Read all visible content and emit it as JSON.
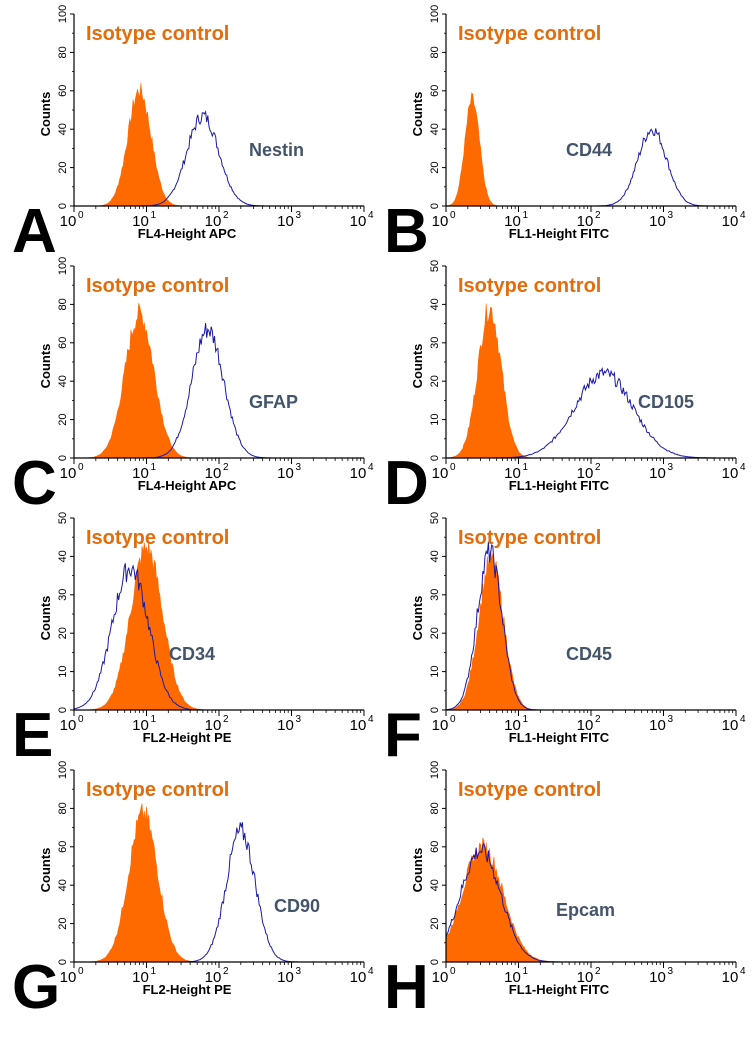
{
  "colors": {
    "isotype_fill": "#ff6a00",
    "marker_line": "#1a1aa8",
    "isotype_label": "#e46c0a",
    "marker_label": "#44546a",
    "axis": "#000000"
  },
  "chart_data": [
    {
      "panel": "A",
      "type": "area",
      "marker": "Nestin",
      "isotype_label": "Isotype control",
      "xlabel": "FL4-Height APC",
      "ylabel": "Counts",
      "xscale": "log",
      "xlim": [
        1,
        10000
      ],
      "ylim": [
        0,
        100
      ],
      "yticks": [
        "0",
        "20",
        "40",
        "60",
        "80",
        "100"
      ],
      "xticks": [
        "10",
        "10",
        "10",
        "10",
        "10"
      ],
      "xtick_exps": [
        "0",
        "1",
        "2",
        "3",
        "4"
      ],
      "series": [
        {
          "name": "Isotype control",
          "style": "filled",
          "peak_x": 8,
          "peak_y": 60,
          "width_decades": 0.16
        },
        {
          "name": "Nestin",
          "style": "line",
          "peak_x": 60,
          "peak_y": 47,
          "width_decades": 0.22
        }
      ]
    },
    {
      "panel": "B",
      "type": "area",
      "marker": "CD44",
      "isotype_label": "Isotype control",
      "xlabel": "FL1-Height FITC",
      "ylabel": "Counts",
      "xscale": "log",
      "xlim": [
        1,
        10000
      ],
      "ylim": [
        0,
        100
      ],
      "yticks": [
        "0",
        "20",
        "40",
        "60",
        "80",
        "100"
      ],
      "xticks": [
        "10",
        "10",
        "10",
        "10",
        "10"
      ],
      "xtick_exps": [
        "0",
        "1",
        "2",
        "3",
        "4"
      ],
      "series": [
        {
          "name": "Isotype control",
          "style": "filled",
          "peak_x": 2.3,
          "peak_y": 55,
          "width_decades": 0.1
        },
        {
          "name": "CD44",
          "style": "line",
          "peak_x": 700,
          "peak_y": 40,
          "width_decades": 0.2
        }
      ]
    },
    {
      "panel": "C",
      "type": "area",
      "marker": "GFAP",
      "isotype_label": "Isotype control",
      "xlabel": "FL4-Height APC",
      "ylabel": "Counts",
      "xscale": "log",
      "xlim": [
        1,
        10000
      ],
      "ylim": [
        0,
        100
      ],
      "yticks": [
        "0",
        "20",
        "40",
        "60",
        "80",
        "100"
      ],
      "xticks": [
        "10",
        "10",
        "10",
        "10",
        "10"
      ],
      "xtick_exps": [
        "0",
        "1",
        "2",
        "3",
        "4"
      ],
      "series": [
        {
          "name": "Isotype control",
          "style": "filled",
          "peak_x": 8,
          "peak_y": 75,
          "width_decades": 0.2
        },
        {
          "name": "GFAP",
          "style": "line",
          "peak_x": 70,
          "peak_y": 67,
          "width_decades": 0.22
        }
      ]
    },
    {
      "panel": "D",
      "type": "area",
      "marker": "CD105",
      "isotype_label": "Isotype control",
      "xlabel": "FL1-Height FITC",
      "ylabel": "Counts",
      "xscale": "log",
      "xlim": [
        1,
        10000
      ],
      "ylim": [
        0,
        50
      ],
      "yticks": [
        "0",
        "10",
        "20",
        "30",
        "40",
        "50"
      ],
      "xticks": [
        "10",
        "10",
        "10",
        "10",
        "10"
      ],
      "xtick_exps": [
        "0",
        "1",
        "2",
        "3",
        "4"
      ],
      "series": [
        {
          "name": "Isotype control",
          "style": "filled",
          "peak_x": 4,
          "peak_y": 39,
          "width_decades": 0.16
        },
        {
          "name": "CD105",
          "style": "line",
          "peak_x": 150,
          "peak_y": 22,
          "width_decades": 0.4
        }
      ]
    },
    {
      "panel": "E",
      "type": "area",
      "marker": "CD34",
      "isotype_label": "Isotype control",
      "xlabel": "FL2-Height PE",
      "ylabel": "Counts",
      "xscale": "log",
      "xlim": [
        1,
        10000
      ],
      "ylim": [
        0,
        50
      ],
      "yticks": [
        "0",
        "10",
        "20",
        "30",
        "40",
        "50"
      ],
      "xticks": [
        "10",
        "10",
        "10",
        "10",
        "10"
      ],
      "xtick_exps": [
        "0",
        "1",
        "2",
        "3",
        "4"
      ],
      "series": [
        {
          "name": "Isotype control",
          "style": "filled",
          "peak_x": 10,
          "peak_y": 42,
          "width_decades": 0.22
        },
        {
          "name": "CD34",
          "style": "line",
          "peak_x": 6,
          "peak_y": 37,
          "width_decades": 0.25
        }
      ]
    },
    {
      "panel": "F",
      "type": "area",
      "marker": "CD45",
      "isotype_label": "Isotype control",
      "xlabel": "FL1-Height FITC",
      "ylabel": "Counts",
      "xscale": "log",
      "xlim": [
        1,
        10000
      ],
      "ylim": [
        0,
        50
      ],
      "yticks": [
        "0",
        "10",
        "20",
        "30",
        "40",
        "50"
      ],
      "xticks": [
        "10",
        "10",
        "10",
        "10",
        "10"
      ],
      "xtick_exps": [
        "0",
        "1",
        "2",
        "3",
        "4"
      ],
      "series": [
        {
          "name": "Isotype control",
          "style": "filled",
          "peak_x": 4.2,
          "peak_y": 39,
          "width_decades": 0.17
        },
        {
          "name": "CD45",
          "style": "line",
          "peak_x": 4,
          "peak_y": 41,
          "width_decades": 0.17
        }
      ]
    },
    {
      "panel": "G",
      "type": "area",
      "marker": "CD90",
      "isotype_label": "Isotype control",
      "xlabel": "FL2-Height PE",
      "ylabel": "Counts",
      "xscale": "log",
      "xlim": [
        1,
        10000
      ],
      "ylim": [
        0,
        100
      ],
      "yticks": [
        "0",
        "20",
        "40",
        "60",
        "80",
        "100"
      ],
      "xticks": [
        "10",
        "10",
        "10",
        "10",
        "10"
      ],
      "xtick_exps": [
        "0",
        "1",
        "2",
        "3",
        "4"
      ],
      "series": [
        {
          "name": "Isotype control",
          "style": "filled",
          "peak_x": 9,
          "peak_y": 77,
          "width_decades": 0.2
        },
        {
          "name": "CD90",
          "style": "line",
          "peak_x": 200,
          "peak_y": 68,
          "width_decades": 0.2
        }
      ]
    },
    {
      "panel": "H",
      "type": "area",
      "marker": "Epcam",
      "isotype_label": "Isotype control",
      "xlabel": "FL1-Height FITC",
      "ylabel": "Counts",
      "xscale": "log",
      "xlim": [
        1,
        10000
      ],
      "ylim": [
        0,
        100
      ],
      "yticks": [
        "0",
        "20",
        "40",
        "60",
        "80",
        "100"
      ],
      "xticks": [
        "10",
        "10",
        "10",
        "10",
        "10"
      ],
      "xtick_exps": [
        "0",
        "1",
        "2",
        "3",
        "4"
      ],
      "series": [
        {
          "name": "Isotype control",
          "style": "filled",
          "peak_x": 3.2,
          "peak_y": 60,
          "width_decades": 0.28
        },
        {
          "name": "Epcam",
          "style": "line",
          "peak_x": 3,
          "peak_y": 58,
          "width_decades": 0.28
        }
      ]
    }
  ]
}
